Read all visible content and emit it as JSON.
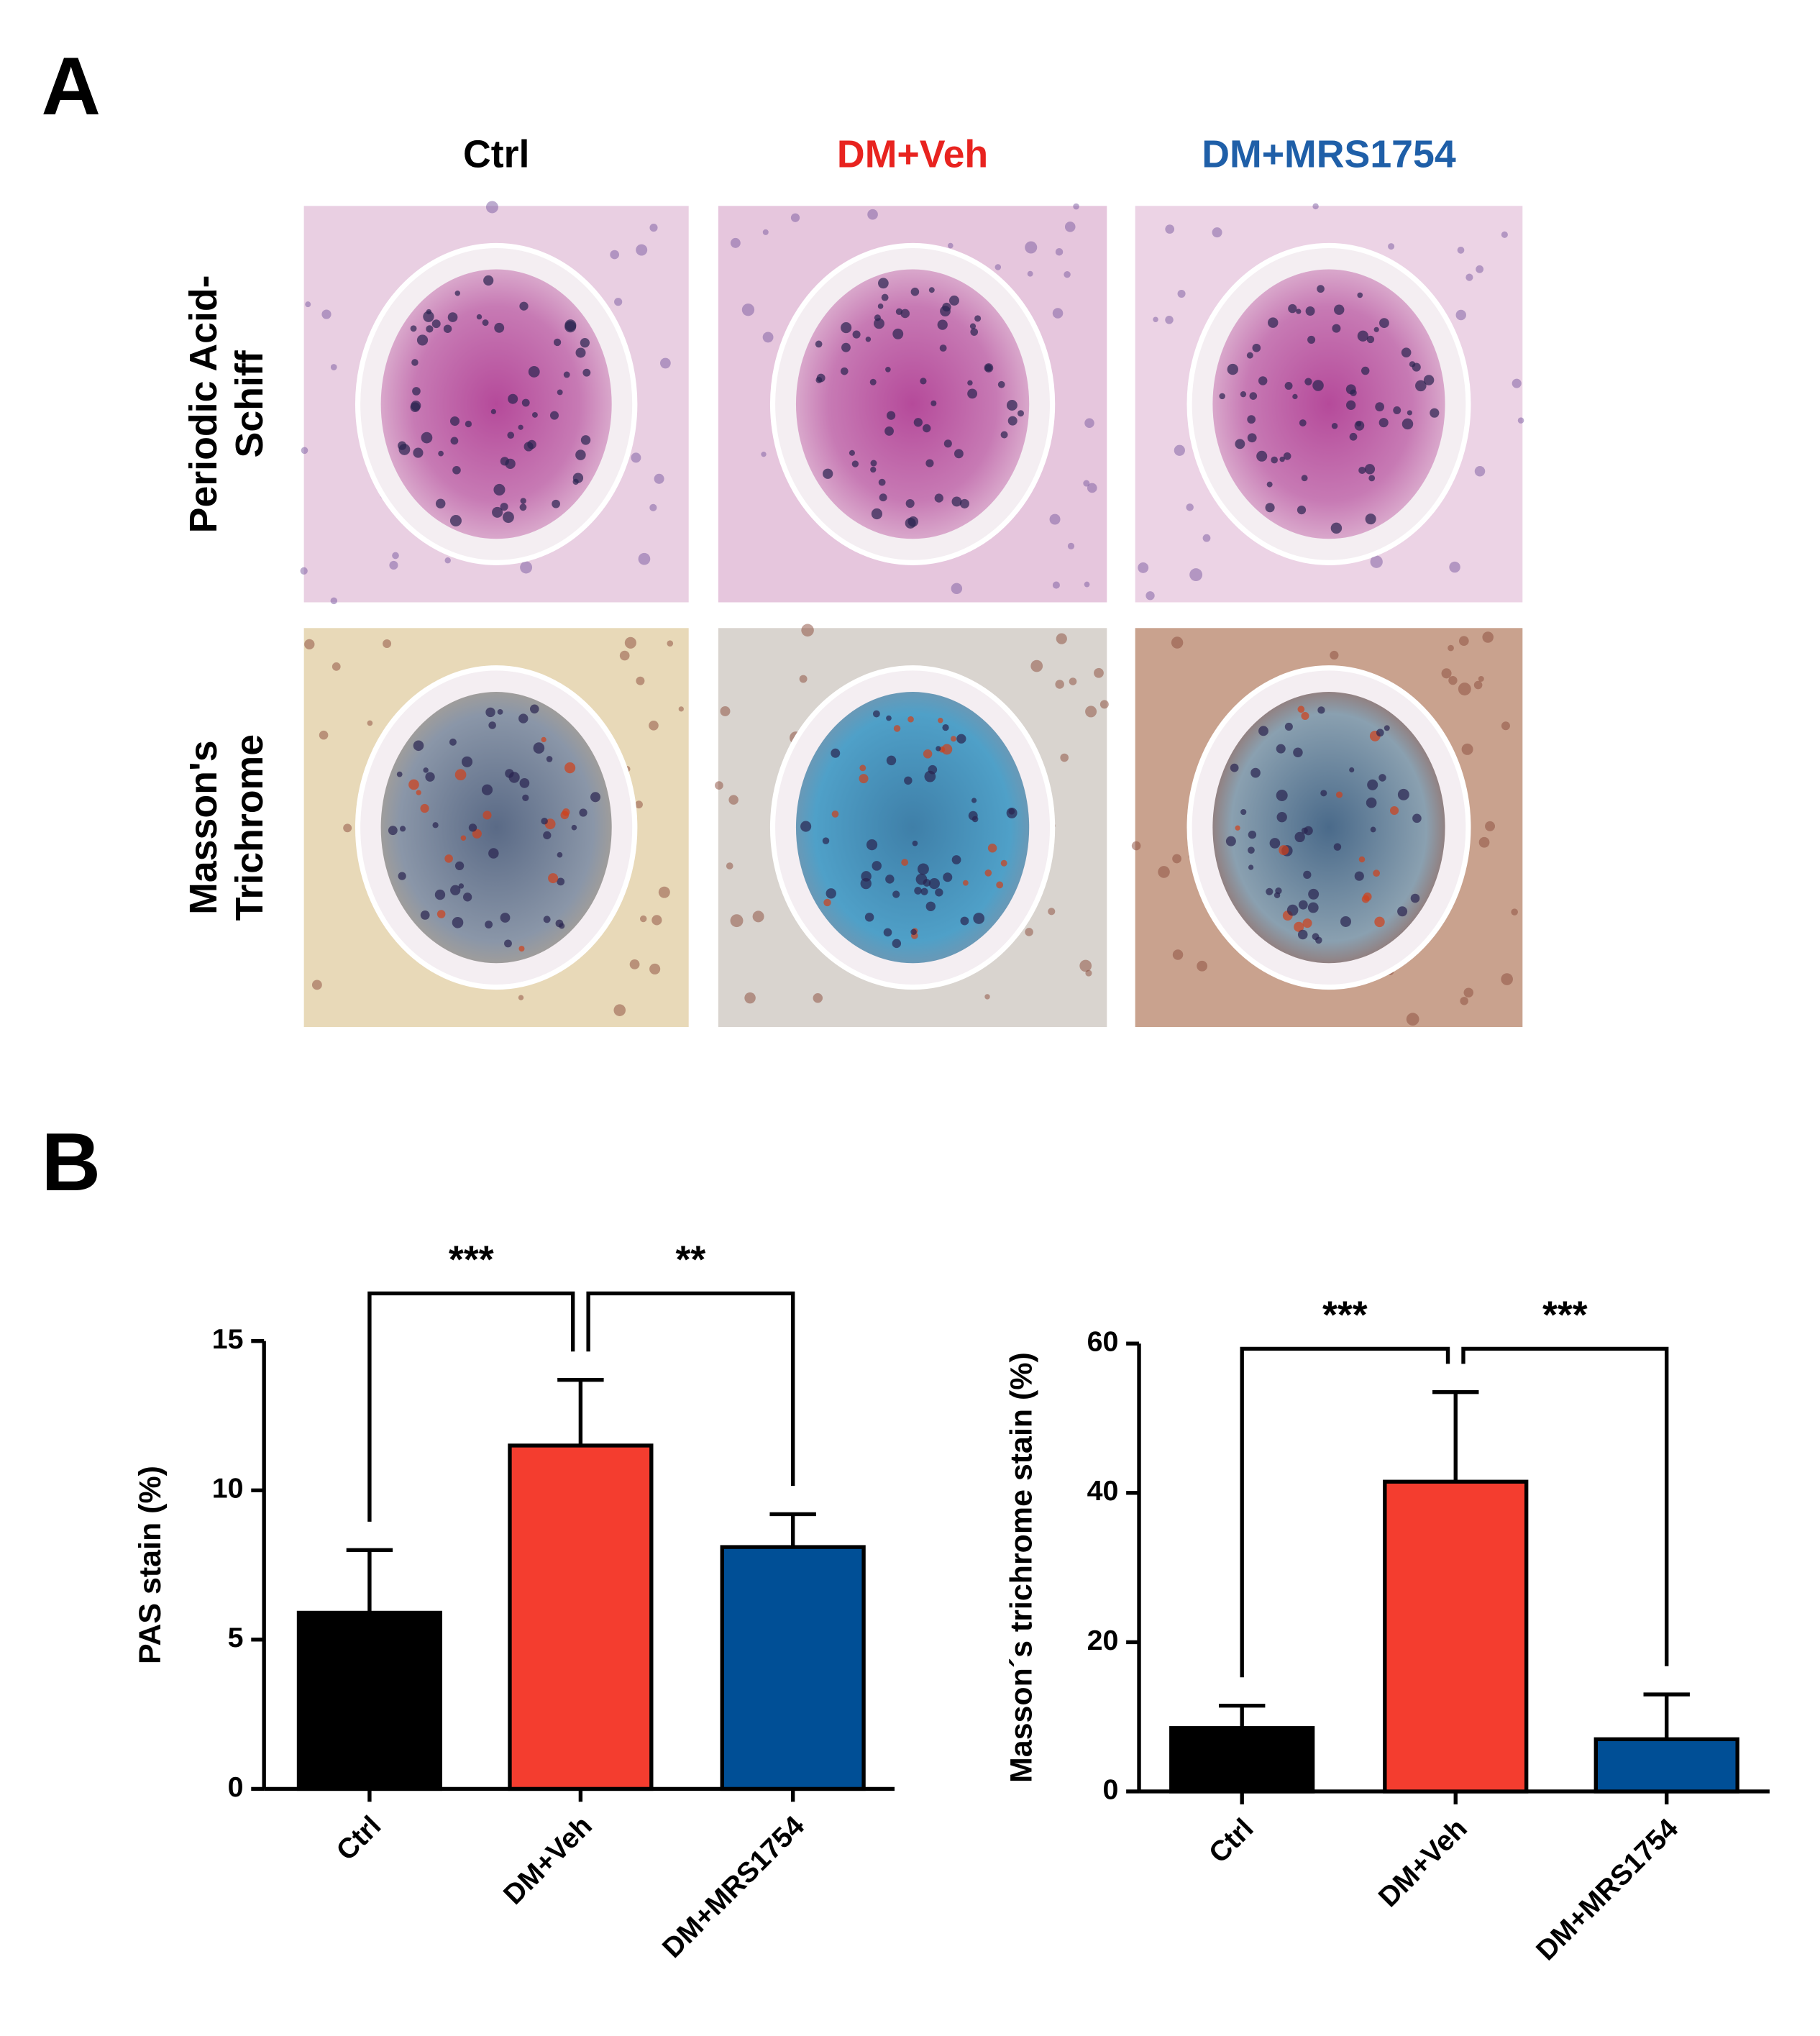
{
  "panel_a": {
    "label": "A",
    "columns": [
      {
        "title": "Ctrl",
        "color": "#000000"
      },
      {
        "title": "DM+Veh",
        "color": "#e8231f"
      },
      {
        "title": "DM+MRS1754",
        "color": "#1f5fa8"
      }
    ],
    "rows": [
      {
        "lines": [
          "Periodic Acid-",
          "Schiff"
        ]
      },
      {
        "lines": [
          "Masson's",
          "Trichrome"
        ]
      }
    ]
  },
  "panel_b": {
    "label": "B"
  },
  "chart_data": [
    {
      "type": "bar",
      "ylabel": "PAS stain (%)",
      "categories": [
        "Ctrl",
        "DM+Veh",
        "DM+MRS1754"
      ],
      "values": [
        5.9,
        11.5,
        8.1
      ],
      "errors": [
        2.1,
        2.2,
        1.1
      ],
      "colors": [
        "#000000",
        "#f43d2f",
        "#004f96"
      ],
      "ylim": [
        0,
        15
      ],
      "yticks": [
        0,
        5,
        10,
        15
      ],
      "annotations": [
        "***",
        "**"
      ]
    },
    {
      "type": "bar",
      "ylabel": "Masson´s trichrome stain (%)",
      "categories": [
        "Ctrl",
        "DM+Veh",
        "DM+MRS1754"
      ],
      "values": [
        8.5,
        41.5,
        7
      ],
      "errors": [
        3,
        12,
        6
      ],
      "colors": [
        "#000000",
        "#f43d2f",
        "#004f96"
      ],
      "ylim": [
        0,
        60
      ],
      "yticks": [
        0,
        20,
        40,
        60
      ],
      "annotations": [
        "***",
        "***"
      ]
    }
  ]
}
